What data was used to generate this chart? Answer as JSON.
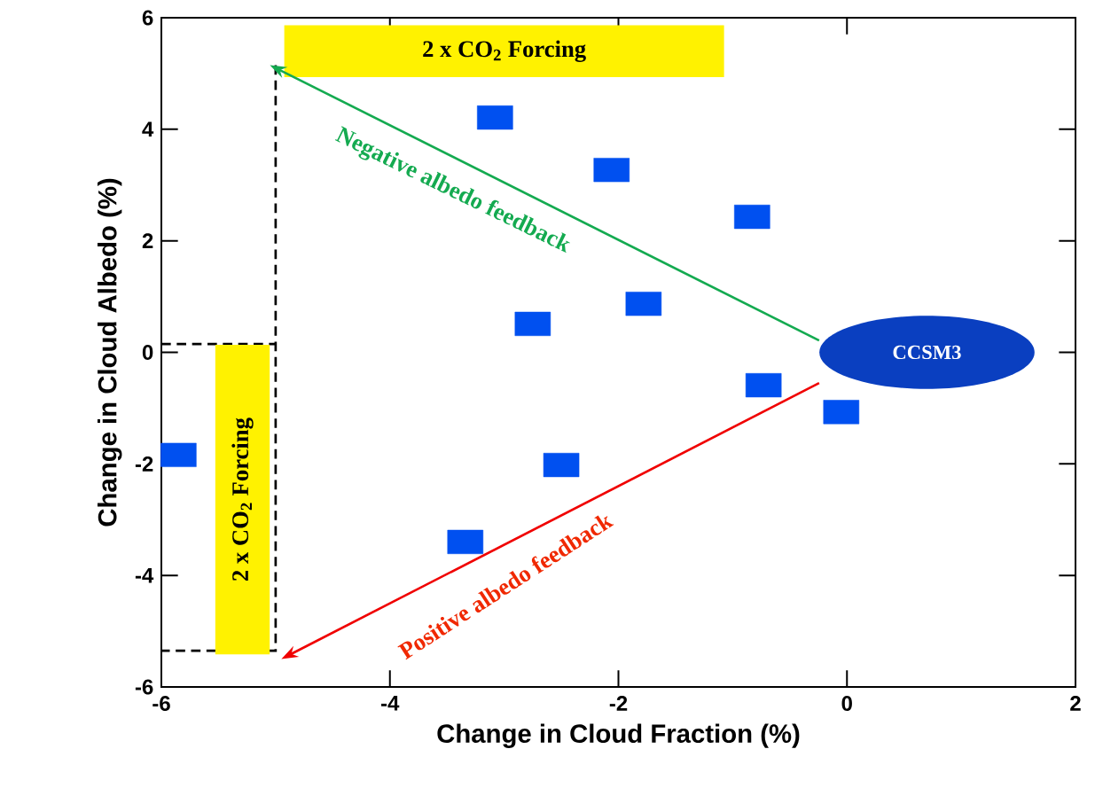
{
  "chart_data": {
    "type": "scatter",
    "xlabel": "Change in Cloud Fraction (%)",
    "ylabel": "Change in Cloud Albedo (%)",
    "x": [
      -5.85,
      -3.08,
      -2.06,
      -0.83,
      -1.78,
      -2.75,
      -0.73,
      -0.05,
      -2.5,
      -3.34
    ],
    "values": [
      -1.84,
      4.21,
      3.27,
      2.43,
      0.87,
      0.51,
      -0.59,
      -1.07,
      -2.02,
      -3.4
    ],
    "color": "#0050f0",
    "marker": "square",
    "xlim": [
      -6,
      2
    ],
    "ylim": [
      -6,
      6
    ],
    "xticks": [
      -6,
      -4,
      -2,
      0,
      2
    ],
    "yticks": [
      -6,
      -4,
      -2,
      0,
      2,
      4,
      6
    ],
    "grid": false,
    "annotations": [
      "CCSM3",
      "Negative albedo feedback",
      "Positive albedo feedback",
      "2 x CO$_{2}$ Forcing",
      "2 x CO$_{2}$ Forcing"
    ]
  }
}
